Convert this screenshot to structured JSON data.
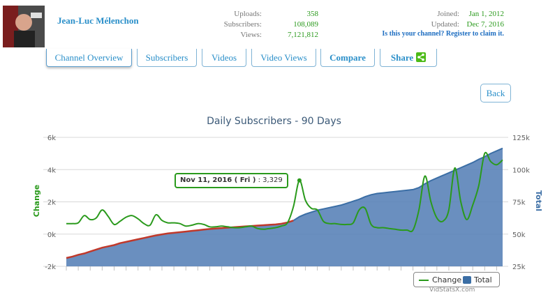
{
  "channel": {
    "name": "Jean-Luc Mélenchon"
  },
  "stats": {
    "labels": [
      "Uploads:",
      "Subscribers:",
      "Views:"
    ],
    "values": [
      "358",
      "108,089",
      "7,121,812"
    ]
  },
  "meta": {
    "labels": [
      "Joined:",
      "Updated:"
    ],
    "values": [
      "Jan 1, 2012",
      "Dec 7, 2016"
    ],
    "claim": "Is this your channel? Register to claim it."
  },
  "tabs": [
    "Channel Overview",
    "Subscribers",
    "Videos",
    "Video Views",
    "Compare",
    "Share"
  ],
  "back_label": "Back",
  "chart_data": {
    "type": "line",
    "title": "Daily Subscribers - 90 Days",
    "left_axis": {
      "title": "Change",
      "ticks": [
        "6k",
        "4k",
        "2k",
        "0k",
        "-2k"
      ],
      "range": [
        -2000,
        6000
      ]
    },
    "right_axis": {
      "title": "Total",
      "ticks": [
        "125k",
        "100k",
        "75k",
        "50k",
        "25k"
      ],
      "range": [
        25000,
        125000
      ]
    },
    "series": [
      {
        "name": "Change",
        "color": "#2a9a1c",
        "values": [
          650,
          650,
          700,
          1150,
          900,
          1000,
          1500,
          1100,
          600,
          800,
          1050,
          1150,
          950,
          650,
          550,
          1200,
          850,
          700,
          700,
          650,
          500,
          550,
          650,
          600,
          450,
          450,
          500,
          450,
          400,
          400,
          450,
          500,
          350,
          300,
          350,
          400,
          500,
          700,
          1700,
          3329,
          2100,
          1600,
          1500,
          800,
          650,
          650,
          600,
          600,
          700,
          1500,
          1600,
          600,
          400,
          400,
          350,
          300,
          250,
          250,
          250,
          1500,
          3600,
          2000,
          1000,
          800,
          1500,
          4100,
          2000,
          900,
          1800,
          3000,
          5000,
          4500,
          4300,
          4600
        ]
      },
      {
        "name": "Total",
        "color": "#3b6ea5",
        "values": [
          31500,
          32500,
          34000,
          35000,
          36500,
          38000,
          39500,
          40500,
          41500,
          43000,
          44000,
          45000,
          46000,
          47000,
          48000,
          49000,
          49800,
          50500,
          51000,
          51500,
          52000,
          52500,
          53000,
          53500,
          54000,
          54300,
          54700,
          55000,
          55300,
          55700,
          56000,
          56300,
          56600,
          56900,
          57200,
          57500,
          58000,
          59000,
          60500,
          63500,
          65500,
          67000,
          68500,
          69500,
          70500,
          71500,
          72500,
          74000,
          75500,
          77000,
          79000,
          80500,
          81500,
          82000,
          82500,
          83000,
          83500,
          84000,
          84500,
          86000,
          89000,
          91500,
          93500,
          95500,
          97500,
          99500,
          101500,
          103500,
          105500,
          108000,
          110000,
          112500,
          114500,
          116500
        ]
      }
    ],
    "tooltip": {
      "date": "Nov 11, 2016 ( Fri )",
      "value": "3,329"
    },
    "legend": [
      "Change",
      "Total"
    ],
    "credit": "VidStatsX.com"
  }
}
